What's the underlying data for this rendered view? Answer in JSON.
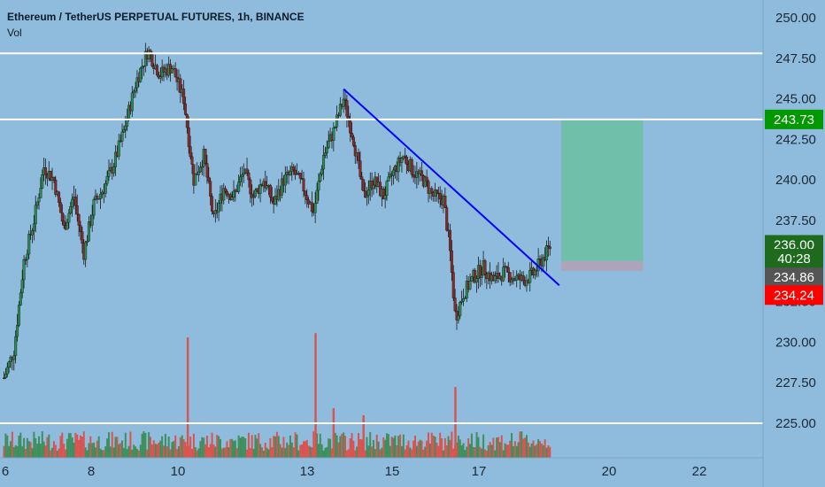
{
  "legend": {
    "symbol": "Ethereum / TetherUS PERPETUAL FUTURES, 1h, BINANCE",
    "indicator": "Vol"
  },
  "colors": {
    "background": "#8fbcdc",
    "candle_up": "#2e8b57",
    "candle_down": "#8b2a2a",
    "volume": "#d9534f",
    "trendline": "#0000ff",
    "horizontal_line": "#ffffff",
    "target_zone": "#6dbfa4",
    "stop_zone": "#b0a2b6",
    "tag_green": "#009900",
    "tag_darkgreen": "#1e6b1e",
    "tag_gray": "#555555",
    "tag_red": "#ff0000"
  },
  "chart_data": {
    "type": "candlestick",
    "x_axis": {
      "ticks": [
        "6",
        "8",
        "10",
        "13",
        "15",
        "17",
        "20",
        "22"
      ]
    },
    "y_axis": {
      "range": [
        222.5,
        251.0
      ],
      "ticks": [
        "250.00",
        "247.50",
        "245.00",
        "242.50",
        "240.00",
        "237.50",
        "235.00",
        "232.50",
        "230.00",
        "227.50",
        "225.00"
      ]
    },
    "horizontal_levels": [
      247.8,
      243.73,
      225.0
    ],
    "trendline": {
      "from": {
        "x": 13.5,
        "y": 245.6
      },
      "to": {
        "x": 18.9,
        "y": 233.5
      }
    },
    "position": {
      "entry": 235.0,
      "target": 243.73,
      "stop": 234.4,
      "from_x": 18.95,
      "to_x": 21.0
    },
    "price_path": [
      {
        "x": 5.0,
        "y": 227.8
      },
      {
        "x": 5.25,
        "y": 229.5
      },
      {
        "x": 5.5,
        "y": 235.0
      },
      {
        "x": 5.75,
        "y": 237.5
      },
      {
        "x": 6.0,
        "y": 240.8
      },
      {
        "x": 6.25,
        "y": 240.0
      },
      {
        "x": 6.5,
        "y": 237.0
      },
      {
        "x": 6.75,
        "y": 239.0
      },
      {
        "x": 7.0,
        "y": 235.5
      },
      {
        "x": 7.25,
        "y": 238.5
      },
      {
        "x": 7.5,
        "y": 239.5
      },
      {
        "x": 7.75,
        "y": 241.0
      },
      {
        "x": 8.0,
        "y": 243.0
      },
      {
        "x": 8.3,
        "y": 246.0
      },
      {
        "x": 8.6,
        "y": 248.0
      },
      {
        "x": 8.9,
        "y": 246.5
      },
      {
        "x": 9.2,
        "y": 247.0
      },
      {
        "x": 9.5,
        "y": 245.0
      },
      {
        "x": 9.75,
        "y": 240.0
      },
      {
        "x": 10.0,
        "y": 241.5
      },
      {
        "x": 10.25,
        "y": 237.5
      },
      {
        "x": 10.5,
        "y": 239.5
      },
      {
        "x": 10.75,
        "y": 239.0
      },
      {
        "x": 11.0,
        "y": 240.5
      },
      {
        "x": 11.25,
        "y": 239.0
      },
      {
        "x": 11.5,
        "y": 240.0
      },
      {
        "x": 11.75,
        "y": 238.5
      },
      {
        "x": 12.0,
        "y": 240.0
      },
      {
        "x": 12.25,
        "y": 240.5
      },
      {
        "x": 12.5,
        "y": 239.5
      },
      {
        "x": 12.75,
        "y": 238.0
      },
      {
        "x": 13.0,
        "y": 241.5
      },
      {
        "x": 13.25,
        "y": 243.0
      },
      {
        "x": 13.5,
        "y": 245.0
      },
      {
        "x": 13.75,
        "y": 242.5
      },
      {
        "x": 14.0,
        "y": 239.0
      },
      {
        "x": 14.25,
        "y": 240.0
      },
      {
        "x": 14.5,
        "y": 239.0
      },
      {
        "x": 14.75,
        "y": 240.5
      },
      {
        "x": 15.0,
        "y": 241.5
      },
      {
        "x": 15.25,
        "y": 240.5
      },
      {
        "x": 15.5,
        "y": 240.0
      },
      {
        "x": 15.75,
        "y": 239.0
      },
      {
        "x": 16.0,
        "y": 238.8
      },
      {
        "x": 16.15,
        "y": 236.0
      },
      {
        "x": 16.3,
        "y": 231.5
      },
      {
        "x": 16.5,
        "y": 233.0
      },
      {
        "x": 16.75,
        "y": 234.0
      },
      {
        "x": 17.0,
        "y": 234.6
      },
      {
        "x": 17.25,
        "y": 233.8
      },
      {
        "x": 17.5,
        "y": 234.3
      },
      {
        "x": 17.75,
        "y": 234.0
      },
      {
        "x": 18.0,
        "y": 233.8
      },
      {
        "x": 18.25,
        "y": 234.2
      },
      {
        "x": 18.5,
        "y": 235.2
      },
      {
        "x": 18.7,
        "y": 236.0
      }
    ],
    "volume_spikes": [
      {
        "x": 9.6,
        "rel": 0.85
      },
      {
        "x": 12.8,
        "rel": 0.88
      },
      {
        "x": 13.25,
        "rel": 0.35
      },
      {
        "x": 14.0,
        "rel": 0.3
      },
      {
        "x": 16.3,
        "rel": 0.5
      }
    ]
  },
  "price_tags": [
    {
      "value": "243.73",
      "price": 243.73,
      "color": "#009900"
    },
    {
      "value": "236.00",
      "price": 236.0,
      "color": "#1e6b1e"
    },
    {
      "value": "40:28",
      "price": 235.15,
      "color": "#1e6b1e"
    },
    {
      "value": "234.86",
      "price": 234.0,
      "color": "#555555"
    },
    {
      "value": "234.24",
      "price": 232.9,
      "color": "#ff0000"
    }
  ]
}
